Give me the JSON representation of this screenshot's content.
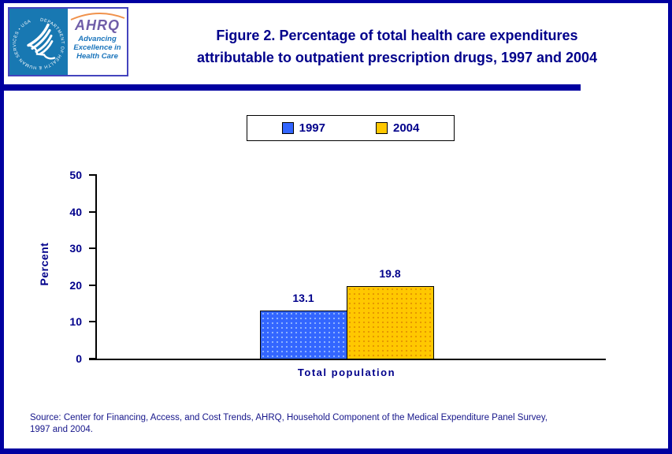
{
  "header": {
    "logo": {
      "seal_text": "DEPARTMENT OF HEALTH & HUMAN SERVICES • USA",
      "ahrq_acronym": "AHRQ",
      "tagline_lines": [
        "Advancing",
        "Excellence in",
        "Health Care"
      ]
    },
    "title_lines": [
      "Figure 2. Percentage of total health care expenditures",
      "attributable to outpatient prescription drugs, 1997 and 2004"
    ]
  },
  "legend": {
    "items": [
      {
        "label": "1997",
        "color": "#3366FF"
      },
      {
        "label": "2004",
        "color": "#FFC800"
      }
    ]
  },
  "chart_data": {
    "type": "bar",
    "title": "Figure 2. Percentage of total health care expenditures attributable to outpatient prescription drugs, 1997 and 2004",
    "categories": [
      "Total population"
    ],
    "series": [
      {
        "name": "1997",
        "values": [
          13.1
        ],
        "color": "#3366FF"
      },
      {
        "name": "2004",
        "values": [
          19.8
        ],
        "color": "#FFC800"
      }
    ],
    "data_labels": [
      "13.1",
      "19.8"
    ],
    "xlabel": "",
    "ylabel": "Percent",
    "ylim": [
      0,
      50
    ],
    "yticks": [
      0,
      10,
      20,
      30,
      40,
      50
    ],
    "grid": false,
    "legend_position": "top-center"
  },
  "source": {
    "lines": [
      "Source: Center for Financing, Access, and Cost Trends, AHRQ, Household Component of the Medical Expenditure Panel Survey,",
      "1997 and 2004."
    ]
  },
  "colors": {
    "navy_text": "#00008B",
    "page_border": "#0000A0",
    "hhs_blue": "#1878B2",
    "ahrq_purple": "#6F5DA8",
    "tagline_blue": "#1B75BC",
    "bar_blue": "#3366FF",
    "bar_gold": "#FFC800"
  }
}
